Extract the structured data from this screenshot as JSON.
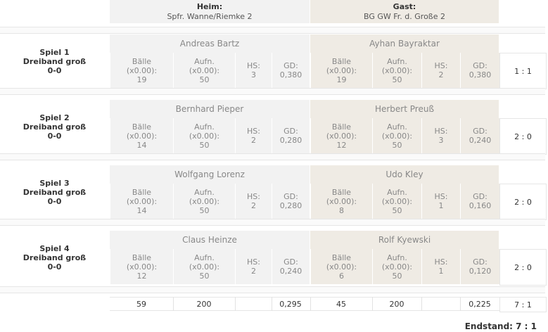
{
  "header": {
    "home_label": "Heim:",
    "home_team": "Spfr. Wanne/Riemke 2",
    "guest_label": "Gast:",
    "guest_team": "BG GW Fr. d. Große 2"
  },
  "stat_labels": {
    "balls": "Bälle\n(x0.00):",
    "innings": "Aufn.\n(x0.00):",
    "hs": "HS:",
    "gd": "GD:"
  },
  "games": [
    {
      "title": "Spiel 1",
      "discipline": "Dreiband groß",
      "result": "0-0",
      "home": {
        "player": "Andreas Bartz",
        "balls": "19",
        "innings": "50",
        "hs": "3",
        "gd": "0,380"
      },
      "guest": {
        "player": "Ayhan Bayraktar",
        "balls": "19",
        "innings": "50",
        "hs": "2",
        "gd": "0,380"
      },
      "score": "1 : 1"
    },
    {
      "title": "Spiel 2",
      "discipline": "Dreiband groß",
      "result": "0-0",
      "home": {
        "player": "Bernhard Pieper",
        "balls": "14",
        "innings": "50",
        "hs": "2",
        "gd": "0,280"
      },
      "guest": {
        "player": "Herbert Preuß",
        "balls": "12",
        "innings": "50",
        "hs": "3",
        "gd": "0,240"
      },
      "score": "2 : 0"
    },
    {
      "title": "Spiel 3",
      "discipline": "Dreiband groß",
      "result": "0-0",
      "home": {
        "player": "Wolfgang Lorenz",
        "balls": "14",
        "innings": "50",
        "hs": "2",
        "gd": "0,280"
      },
      "guest": {
        "player": "Udo Kley",
        "balls": "8",
        "innings": "50",
        "hs": "1",
        "gd": "0,160"
      },
      "score": "2 : 0"
    },
    {
      "title": "Spiel 4",
      "discipline": "Dreiband groß",
      "result": "0-0",
      "home": {
        "player": "Claus Heinze",
        "balls": "12",
        "innings": "50",
        "hs": "2",
        "gd": "0,240"
      },
      "guest": {
        "player": "Rolf Kyewski",
        "balls": "6",
        "innings": "50",
        "hs": "1",
        "gd": "0,120"
      },
      "score": "2 : 0"
    }
  ],
  "totals": {
    "home_balls": "59",
    "home_innings": "200",
    "home_gd": "0,295",
    "guest_balls": "45",
    "guest_innings": "200",
    "guest_gd": "0,225",
    "score": "7 : 1"
  },
  "final": "Endstand: 7 : 1"
}
